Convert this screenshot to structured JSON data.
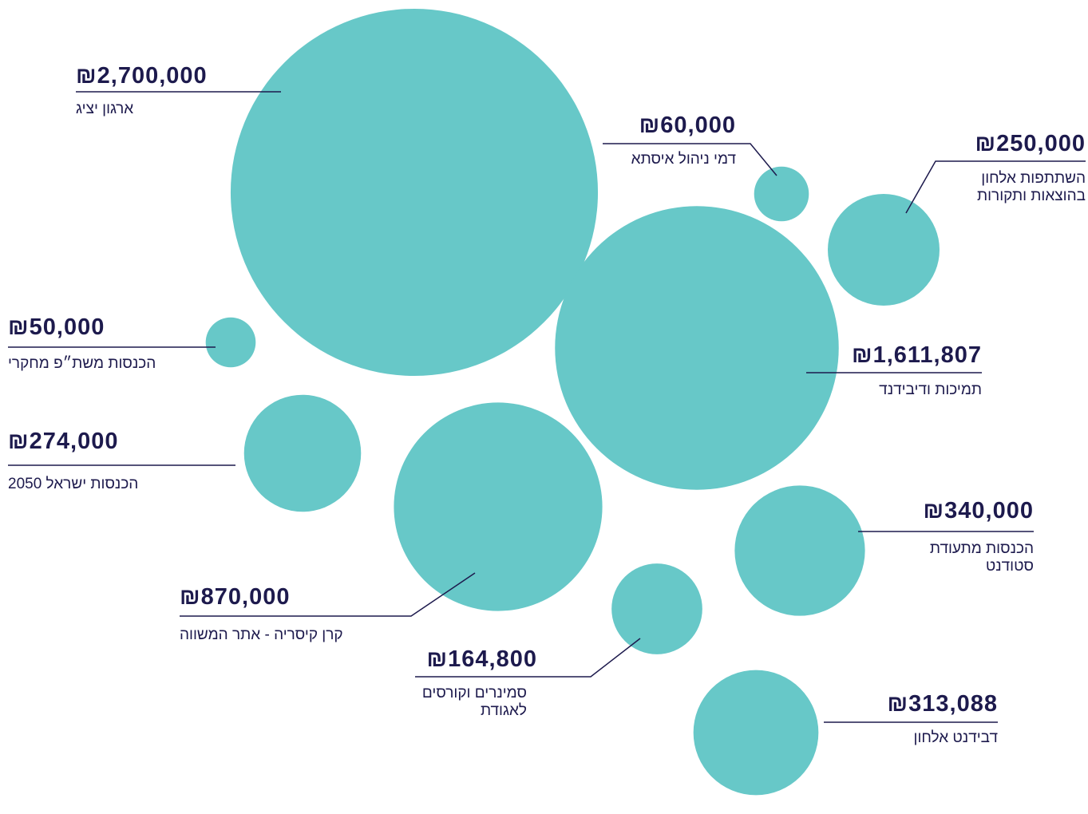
{
  "chart_data": {
    "type": "bubble",
    "categories": [
      "ארגון יציג",
      "דמי ניהול איסתא",
      "השתתפות אלחון בהוצאות ותקורות",
      "הכנסות משת״פ מחקרי",
      "תמיכות ודיבידנד",
      "הכנסות ישראל 2050",
      "קרן קיסריה - אתר המשווה",
      "הכנסות מתעודת סטודנט",
      "סמינרים וקורסים לאגודת",
      "דבידנט אלחון"
    ],
    "values": [
      2700000,
      60000,
      250000,
      50000,
      1611807,
      274000,
      870000,
      340000,
      164800,
      313088
    ],
    "value_labels": [
      "₪2,700,000",
      "₪60,000",
      "₪250,000",
      "₪50,000",
      "₪1,611,807",
      "₪274,000",
      "₪870,000",
      "₪340,000",
      "₪164,800",
      "₪313,088"
    ],
    "color": "#67c8c8"
  }
}
